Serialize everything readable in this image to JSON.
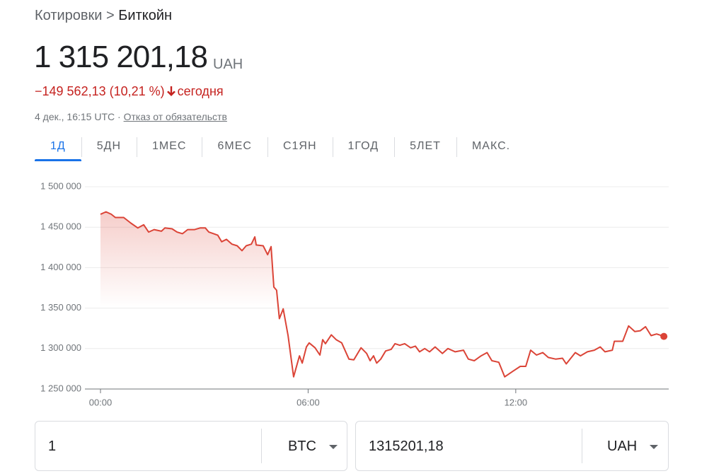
{
  "breadcrumb": {
    "parent": "Котировки",
    "separator": ">",
    "current": "Биткойн"
  },
  "price": {
    "value": "1 315 201,18",
    "currency": "UAH"
  },
  "change": {
    "text": "−149 562,13 (10,21 %)",
    "period": "сегодня"
  },
  "timestamp": "4 дек., 16:15 UTC",
  "disclaimer": "Отказ от обязательств",
  "tabs": [
    "1Д",
    "5ДН",
    "1МЕС",
    "6МЕС",
    "С1ЯН",
    "1ГОД",
    "5ЛЕТ",
    "МАКС."
  ],
  "chart_data": {
    "type": "line",
    "color": "#db4437",
    "grid": true,
    "x": [
      0,
      0.16,
      0.31,
      0.43,
      0.67,
      0.88,
      1.08,
      1.25,
      1.39,
      1.55,
      1.76,
      1.86,
      2.07,
      2.21,
      2.37,
      2.52,
      2.72,
      2.88,
      3.03,
      3.13,
      3.27,
      3.39,
      3.5,
      3.64,
      3.8,
      3.95,
      4.09,
      4.21,
      4.36,
      4.46,
      4.5,
      4.7,
      4.83,
      4.93,
      5.01,
      5.09,
      5.17,
      5.28,
      5.42,
      5.58,
      5.75,
      5.83,
      5.95,
      6.03,
      6.2,
      6.34,
      6.42,
      6.5,
      6.67,
      6.81,
      6.97,
      7.18,
      7.32,
      7.53,
      7.69,
      7.79,
      7.89,
      7.98,
      8.1,
      8.24,
      8.4,
      8.51,
      8.65,
      8.79,
      8.96,
      9.1,
      9.22,
      9.37,
      9.51,
      9.67,
      9.88,
      10.04,
      10.25,
      10.49,
      10.63,
      10.8,
      11.0,
      11.17,
      11.31,
      11.51,
      11.68,
      11.92,
      12.13,
      12.29,
      12.43,
      12.6,
      12.78,
      12.94,
      13.15,
      13.35,
      13.46,
      13.72,
      13.87,
      14.07,
      14.27,
      14.44,
      14.58,
      14.79,
      14.85,
      15.09,
      15.26,
      15.44,
      15.6,
      15.75,
      15.91,
      16.07,
      16.28
    ],
    "values": [
      1466000,
      1469000,
      1466000,
      1462000,
      1462000,
      1455000,
      1449000,
      1453000,
      1444000,
      1447000,
      1445000,
      1449000,
      1448000,
      1444000,
      1442000,
      1447000,
      1447000,
      1449000,
      1449000,
      1444000,
      1442000,
      1440000,
      1432000,
      1435000,
      1429000,
      1427000,
      1421000,
      1427000,
      1429000,
      1438000,
      1428000,
      1427000,
      1416000,
      1426000,
      1376000,
      1372000,
      1337000,
      1349000,
      1316000,
      1265000,
      1291000,
      1282000,
      1302000,
      1307000,
      1301000,
      1292000,
      1311000,
      1306000,
      1317000,
      1311000,
      1307000,
      1287000,
      1286000,
      1301000,
      1294000,
      1285000,
      1291000,
      1282000,
      1287000,
      1297000,
      1299000,
      1306000,
      1304000,
      1306000,
      1301000,
      1303000,
      1296000,
      1300000,
      1296000,
      1302000,
      1294000,
      1300000,
      1296000,
      1298000,
      1287000,
      1285000,
      1291000,
      1295000,
      1285000,
      1283000,
      1265000,
      1272000,
      1278000,
      1278000,
      1298000,
      1292000,
      1295000,
      1289000,
      1287000,
      1288000,
      1281000,
      1295000,
      1291000,
      1296000,
      1298000,
      1302000,
      1296000,
      1298000,
      1309000,
      1309000,
      1328000,
      1321000,
      1322000,
      1327000,
      1316000,
      1318000,
      1315000
    ],
    "xlim": [
      -0.45,
      16.42
    ],
    "xticks": [
      {
        "value": 0,
        "label": "00:00"
      },
      {
        "value": 6,
        "label": "06:00"
      },
      {
        "value": 12,
        "label": "12:00"
      }
    ],
    "ylim": [
      1250000,
      1500000
    ],
    "yticks": [
      {
        "value": 1250000,
        "label": "1 250 000"
      },
      {
        "value": 1300000,
        "label": "1 300 000"
      },
      {
        "value": 1350000,
        "label": "1 350 000"
      },
      {
        "value": 1400000,
        "label": "1 400 000"
      },
      {
        "value": 1450000,
        "label": "1 450 000"
      },
      {
        "value": 1500000,
        "label": "1 500 000"
      }
    ]
  },
  "converter": {
    "from": {
      "amount": "1",
      "unit": "BTC"
    },
    "to": {
      "amount": "1315201,18",
      "unit": "UAH"
    }
  }
}
